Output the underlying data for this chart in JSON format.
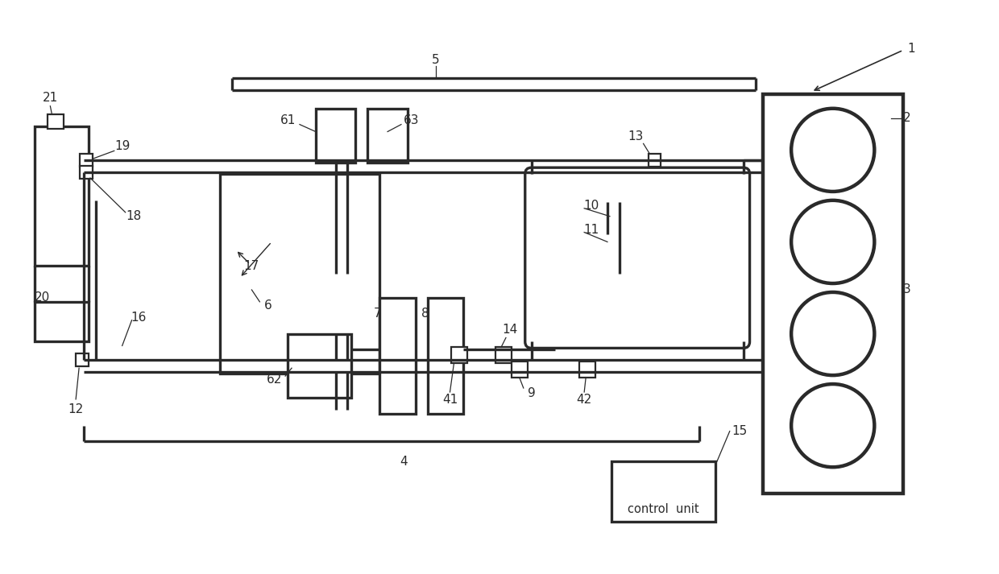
{
  "bg_color": "#ffffff",
  "lc": "#2a2a2a",
  "lw": 1.6,
  "fig_width": 12.4,
  "fig_height": 7.13
}
